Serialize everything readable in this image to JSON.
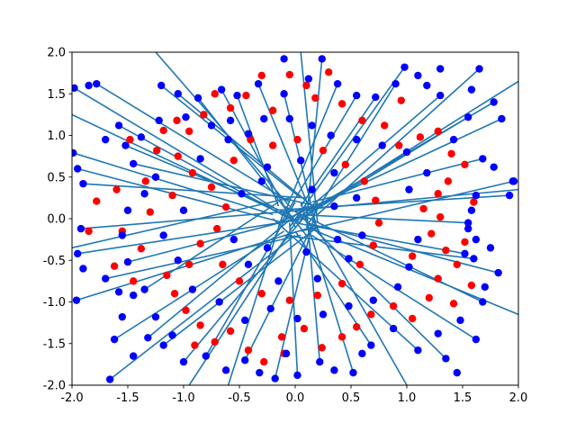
{
  "chart_data": {
    "type": "scatter",
    "title": "",
    "xlabel": "",
    "ylabel": "",
    "xlim": [
      -2.0,
      2.0
    ],
    "ylim": [
      -2.0,
      2.0
    ],
    "grid": false,
    "legend": "none",
    "x_ticks": [
      "-2.0",
      "-1.5",
      "-1.0",
      "-0.5",
      "0.0",
      "0.5",
      "1.0",
      "1.5",
      "2.0"
    ],
    "y_ticks": [
      "-2.0",
      "-1.5",
      "-1.0",
      "-0.5",
      "0.0",
      "0.5",
      "1.0",
      "1.5",
      "2.0"
    ],
    "colors": {
      "line": "#1f77b4",
      "red_points": "#ff0000",
      "blue_points": "#0000ff"
    },
    "red_points": [
      [
        -1.78,
        0.21
      ],
      [
        -1.85,
        -0.15
      ],
      [
        -1.62,
        -0.57
      ],
      [
        -1.45,
        -0.75
      ],
      [
        -1.38,
        -0.36
      ],
      [
        -1.3,
        0.08
      ],
      [
        -1.34,
        0.45
      ],
      [
        -1.24,
        0.82
      ],
      [
        -1.18,
        1.06
      ],
      [
        -1.06,
        1.18
      ],
      [
        -0.95,
        1.05
      ],
      [
        -0.82,
        1.25
      ],
      [
        -0.72,
        1.5
      ],
      [
        -0.58,
        1.33
      ],
      [
        -0.44,
        1.48
      ],
      [
        -0.3,
        1.72
      ],
      [
        -0.2,
        1.3
      ],
      [
        -0.05,
        1.73
      ],
      [
        0.18,
        1.45
      ],
      [
        0.3,
        1.76
      ],
      [
        0.42,
        1.38
      ],
      [
        0.6,
        1.18
      ],
      [
        0.8,
        1.12
      ],
      [
        0.93,
        0.88
      ],
      [
        1.12,
        0.98
      ],
      [
        1.28,
        1.05
      ],
      [
        1.4,
        0.78
      ],
      [
        1.52,
        0.65
      ],
      [
        1.37,
        0.45
      ],
      [
        1.28,
        0.3
      ],
      [
        1.15,
        0.12
      ],
      [
        1.3,
        0.02
      ],
      [
        1.22,
        -0.18
      ],
      [
        1.35,
        -0.38
      ],
      [
        1.45,
        -0.55
      ],
      [
        1.28,
        -0.72
      ],
      [
        1.42,
        -1.02
      ],
      [
        1.2,
        -0.95
      ],
      [
        1.05,
        -1.2
      ],
      [
        0.88,
        -1.05
      ],
      [
        0.68,
        -1.15
      ],
      [
        0.55,
        -1.3
      ],
      [
        0.42,
        -1.42
      ],
      [
        0.24,
        -1.55
      ],
      [
        0.08,
        -1.32
      ],
      [
        -0.12,
        -1.42
      ],
      [
        -0.28,
        -1.72
      ],
      [
        -0.42,
        -1.58
      ],
      [
        -0.58,
        -1.35
      ],
      [
        -0.72,
        -1.48
      ],
      [
        -0.85,
        -1.28
      ],
      [
        -0.98,
        -1.1
      ],
      [
        -1.08,
        -0.9
      ],
      [
        -1.15,
        -0.68
      ],
      [
        -0.95,
        -0.55
      ],
      [
        -0.85,
        -0.3
      ],
      [
        -0.7,
        -0.12
      ],
      [
        -0.62,
        0.14
      ],
      [
        -0.75,
        0.38
      ],
      [
        -0.92,
        0.55
      ],
      [
        -1.05,
        0.75
      ],
      [
        -0.55,
        0.7
      ],
      [
        -0.4,
        0.95
      ],
      [
        -0.2,
        0.88
      ],
      [
        0.02,
        0.95
      ],
      [
        0.25,
        0.82
      ],
      [
        0.45,
        0.65
      ],
      [
        0.62,
        0.45
      ],
      [
        0.72,
        0.22
      ],
      [
        0.75,
        -0.05
      ],
      [
        0.7,
        -0.32
      ],
      [
        0.58,
        -0.55
      ],
      [
        0.42,
        -0.78
      ],
      [
        0.2,
        -0.92
      ],
      [
        -0.05,
        -0.98
      ],
      [
        -0.3,
        -0.9
      ],
      [
        -0.5,
        -0.75
      ],
      [
        -0.65,
        -0.55
      ],
      [
        -1.6,
        0.35
      ],
      [
        -1.55,
        -0.15
      ],
      [
        1.6,
        0.2
      ],
      [
        1.52,
        -0.28
      ],
      [
        0.95,
        1.42
      ],
      [
        -0.9,
        -1.52
      ],
      [
        1.58,
        -0.8
      ],
      [
        -1.48,
        0.95
      ],
      [
        0.1,
        1.6
      ],
      [
        -0.1,
        -1.62
      ],
      [
        1.05,
        -0.45
      ],
      [
        -1.1,
        0.28
      ]
    ],
    "blue_points": [
      [
        -1.99,
        0.79
      ],
      [
        -1.98,
        1.57
      ],
      [
        -1.78,
        1.62
      ],
      [
        -1.95,
        0.6
      ],
      [
        -1.9,
        0.42
      ],
      [
        -1.92,
        -0.12
      ],
      [
        -1.95,
        -0.42
      ],
      [
        -1.9,
        -0.6
      ],
      [
        -1.96,
        -0.98
      ],
      [
        -1.62,
        -1.45
      ],
      [
        -1.66,
        -1.93
      ],
      [
        -1.32,
        -1.43
      ],
      [
        -1.18,
        -1.52
      ],
      [
        -1.55,
        -1.18
      ],
      [
        -1.45,
        -0.92
      ],
      [
        -1.5,
        -0.52
      ],
      [
        -1.5,
        0.1
      ],
      [
        -1.45,
        0.66
      ],
      [
        -1.52,
        0.88
      ],
      [
        -1.58,
        1.12
      ],
      [
        -1.2,
        1.6
      ],
      [
        -1.05,
        1.5
      ],
      [
        -0.87,
        1.45
      ],
      [
        -0.66,
        1.55
      ],
      [
        -0.52,
        1.48
      ],
      [
        -0.33,
        1.62
      ],
      [
        -0.1,
        1.5
      ],
      [
        0.12,
        1.68
      ],
      [
        0.24,
        1.92
      ],
      [
        0.38,
        1.62
      ],
      [
        0.55,
        1.48
      ],
      [
        0.72,
        1.46
      ],
      [
        0.9,
        1.62
      ],
      [
        0.98,
        1.82
      ],
      [
        1.1,
        1.72
      ],
      [
        1.18,
        1.6
      ],
      [
        1.3,
        1.48
      ],
      [
        1.58,
        1.55
      ],
      [
        1.65,
        1.8
      ],
      [
        1.78,
        1.4
      ],
      [
        1.85,
        1.2
      ],
      [
        1.55,
        1.22
      ],
      [
        1.42,
        0.95
      ],
      [
        1.68,
        0.72
      ],
      [
        1.78,
        0.62
      ],
      [
        1.96,
        0.45
      ],
      [
        1.92,
        0.28
      ],
      [
        1.62,
        0.28
      ],
      [
        1.58,
        0.1
      ],
      [
        1.55,
        -0.05
      ],
      [
        1.55,
        -0.12
      ],
      [
        1.62,
        -0.25
      ],
      [
        1.52,
        -0.42
      ],
      [
        1.6,
        -0.48
      ],
      [
        1.82,
        -0.65
      ],
      [
        1.7,
        -0.82
      ],
      [
        1.68,
        -1.0
      ],
      [
        1.48,
        -1.22
      ],
      [
        1.62,
        -1.45
      ],
      [
        1.28,
        -1.38
      ],
      [
        1.35,
        -1.68
      ],
      [
        1.1,
        -1.58
      ],
      [
        0.88,
        -1.32
      ],
      [
        0.68,
        -1.52
      ],
      [
        0.52,
        -1.85
      ],
      [
        0.35,
        -1.82
      ],
      [
        0.22,
        -1.72
      ],
      [
        0.02,
        -1.88
      ],
      [
        -0.08,
        -1.62
      ],
      [
        -0.18,
        -1.92
      ],
      [
        -0.32,
        -1.85
      ],
      [
        -0.45,
        -1.7
      ],
      [
        -0.62,
        -1.82
      ],
      [
        -0.8,
        -1.65
      ],
      [
        -1.0,
        -1.72
      ],
      [
        -1.1,
        -1.4
      ],
      [
        -1.25,
        -1.18
      ],
      [
        -1.35,
        -0.85
      ],
      [
        -1.58,
        -0.88
      ],
      [
        -1.7,
        -0.72
      ],
      [
        -1.35,
        0.3
      ],
      [
        -1.25,
        0.5
      ],
      [
        -1.38,
        0.98
      ],
      [
        -1.22,
        1.18
      ],
      [
        -0.98,
        1.22
      ],
      [
        -0.75,
        1.12
      ],
      [
        -0.58,
        1.18
      ],
      [
        -0.42,
        1.02
      ],
      [
        -0.28,
        1.2
      ],
      [
        -0.05,
        1.2
      ],
      [
        0.15,
        1.12
      ],
      [
        0.32,
        1.0
      ],
      [
        0.55,
        0.95
      ],
      [
        0.78,
        0.88
      ],
      [
        1.0,
        0.8
      ],
      [
        1.18,
        0.55
      ],
      [
        1.02,
        0.35
      ],
      [
        1.1,
        -0.25
      ],
      [
        1.02,
        -0.58
      ],
      [
        0.92,
        -0.82
      ],
      [
        0.7,
        -0.98
      ],
      [
        0.48,
        -1.05
      ],
      [
        0.25,
        -1.15
      ],
      [
        0.02,
        -1.2
      ],
      [
        -0.22,
        -1.08
      ],
      [
        -0.45,
        -1.22
      ],
      [
        -0.68,
        -1.0
      ],
      [
        -0.92,
        -0.85
      ],
      [
        -1.05,
        -0.5
      ],
      [
        -1.18,
        -0.2
      ],
      [
        -1.0,
        0.1
      ],
      [
        -0.85,
        0.72
      ],
      [
        -0.6,
        0.95
      ],
      [
        -0.25,
        0.62
      ],
      [
        0.05,
        0.7
      ],
      [
        0.35,
        0.55
      ],
      [
        0.55,
        0.25
      ],
      [
        0.6,
        -0.2
      ],
      [
        0.48,
        -0.48
      ],
      [
        0.2,
        -0.72
      ],
      [
        -0.15,
        -0.75
      ],
      [
        -0.42,
        -0.55
      ],
      [
        -0.55,
        -0.25
      ],
      [
        -0.48,
        0.3
      ],
      [
        -0.3,
        0.45
      ],
      [
        0.15,
        0.35
      ],
      [
        0.35,
        0.15
      ],
      [
        0.38,
        -0.25
      ],
      [
        0.1,
        -0.4
      ],
      [
        -0.25,
        -0.35
      ],
      [
        -1.7,
        0.95
      ],
      [
        1.95,
        0.45
      ],
      [
        -1.55,
        -0.2
      ],
      [
        1.45,
        -1.85
      ],
      [
        -0.1,
        1.92
      ],
      [
        0.6,
        -1.62
      ],
      [
        -1.85,
        1.6
      ],
      [
        1.3,
        1.8
      ],
      [
        1.75,
        -0.35
      ],
      [
        -1.45,
        -1.65
      ]
    ],
    "line_segments": [
      [
        [
          -1.99,
          0.79
        ],
        [
          -0.2,
          0.05
        ]
      ],
      [
        [
          -1.98,
          1.57
        ],
        [
          -0.15,
          0.1
        ]
      ],
      [
        [
          -1.78,
          1.62
        ],
        [
          -0.05,
          0.2
        ]
      ],
      [
        [
          -1.95,
          0.6
        ],
        [
          -0.1,
          -0.05
        ]
      ],
      [
        [
          -1.92,
          -0.12
        ],
        [
          0.05,
          0.1
        ]
      ],
      [
        [
          -1.95,
          -0.42
        ],
        [
          0.1,
          0.0
        ]
      ],
      [
        [
          -1.96,
          -0.98
        ],
        [
          0.15,
          -0.1
        ]
      ],
      [
        [
          -1.66,
          -1.93
        ],
        [
          0.0,
          -0.2
        ]
      ],
      [
        [
          -1.62,
          -1.45
        ],
        [
          -0.1,
          -0.15
        ]
      ],
      [
        [
          -1.32,
          -1.43
        ],
        [
          0.1,
          0.15
        ]
      ],
      [
        [
          -1.2,
          1.6
        ],
        [
          0.05,
          0.25
        ]
      ],
      [
        [
          -1.05,
          1.5
        ],
        [
          0.2,
          0.1
        ]
      ],
      [
        [
          -0.66,
          1.55
        ],
        [
          0.0,
          -0.1
        ]
      ],
      [
        [
          -0.33,
          1.62
        ],
        [
          0.15,
          0.05
        ]
      ],
      [
        [
          -0.1,
          1.5
        ],
        [
          0.2,
          -0.15
        ]
      ],
      [
        [
          0.24,
          1.92
        ],
        [
          0.1,
          -0.05
        ]
      ],
      [
        [
          0.38,
          1.62
        ],
        [
          -0.1,
          0.05
        ]
      ],
      [
        [
          0.72,
          1.46
        ],
        [
          0.05,
          0.15
        ]
      ],
      [
        [
          0.98,
          1.82
        ],
        [
          -0.05,
          -0.1
        ]
      ],
      [
        [
          1.3,
          1.48
        ],
        [
          0.1,
          0.1
        ]
      ],
      [
        [
          1.65,
          1.8
        ],
        [
          0.2,
          0.05
        ]
      ],
      [
        [
          1.78,
          1.4
        ],
        [
          0.0,
          0.0
        ]
      ],
      [
        [
          1.85,
          1.2
        ],
        [
          -0.15,
          -0.05
        ]
      ],
      [
        [
          1.96,
          0.45
        ],
        [
          0.05,
          -0.15
        ]
      ],
      [
        [
          1.92,
          0.28
        ],
        [
          -0.2,
          0.1
        ]
      ],
      [
        [
          1.55,
          -0.05
        ],
        [
          0.0,
          0.05
        ]
      ],
      [
        [
          1.82,
          -0.65
        ],
        [
          0.1,
          -0.05
        ]
      ],
      [
        [
          1.68,
          -1.0
        ],
        [
          -0.1,
          0.15
        ]
      ],
      [
        [
          1.62,
          -1.45
        ],
        [
          0.15,
          -0.2
        ]
      ],
      [
        [
          1.35,
          -1.68
        ],
        [
          0.0,
          0.1
        ]
      ],
      [
        [
          1.1,
          -1.58
        ],
        [
          -0.2,
          0.0
        ]
      ],
      [
        [
          0.52,
          -1.85
        ],
        [
          0.05,
          0.2
        ]
      ],
      [
        [
          0.22,
          -1.72
        ],
        [
          0.1,
          0.15
        ]
      ],
      [
        [
          0.02,
          -1.88
        ],
        [
          -0.05,
          -0.05
        ]
      ],
      [
        [
          -0.18,
          -1.92
        ],
        [
          0.2,
          0.2
        ]
      ],
      [
        [
          -0.45,
          -1.7
        ],
        [
          0.15,
          -0.1
        ]
      ],
      [
        [
          -0.8,
          -1.65
        ],
        [
          0.0,
          0.2
        ]
      ],
      [
        [
          -1.0,
          -1.72
        ],
        [
          0.1,
          0.05
        ]
      ],
      [
        [
          -1.35,
          -0.85
        ],
        [
          -0.15,
          0.2
        ]
      ],
      [
        [
          -1.7,
          -0.72
        ],
        [
          0.05,
          -0.2
        ]
      ],
      [
        [
          -1.45,
          0.66
        ],
        [
          0.2,
          0.15
        ]
      ],
      [
        [
          -1.52,
          0.88
        ],
        [
          -0.05,
          0.05
        ]
      ],
      [
        [
          -0.87,
          1.45
        ],
        [
          0.1,
          -0.2
        ]
      ],
      [
        [
          0.55,
          1.48
        ],
        [
          -0.15,
          -0.1
        ]
      ],
      [
        [
          1.55,
          1.22
        ],
        [
          0.05,
          0.0
        ]
      ],
      [
        [
          1.68,
          0.72
        ],
        [
          0.15,
          0.2
        ]
      ],
      [
        [
          1.6,
          -0.48
        ],
        [
          -0.1,
          -0.2
        ]
      ],
      [
        [
          0.68,
          -1.52
        ],
        [
          0.0,
          -0.15
        ]
      ],
      [
        [
          -1.18,
          -1.52
        ],
        [
          0.2,
          -0.1
        ]
      ],
      [
        [
          -1.9,
          0.42
        ],
        [
          0.1,
          0.25
        ]
      ],
      [
        [
          -2.0,
          -0.35
        ],
        [
          -0.05,
          0.25
        ]
      ],
      [
        [
          2.0,
          1.65
        ],
        [
          0.1,
          0.05
        ]
      ],
      [
        [
          2.0,
          0.35
        ],
        [
          0.0,
          0.1
        ]
      ],
      [
        [
          -0.95,
          -2.0
        ],
        [
          0.05,
          0.05
        ]
      ],
      [
        [
          -0.6,
          -2.0
        ],
        [
          -0.1,
          0.1
        ]
      ],
      [
        [
          1.0,
          -2.0
        ],
        [
          0.15,
          0.0
        ]
      ],
      [
        [
          -1.25,
          2.0
        ],
        [
          -0.05,
          0.15
        ]
      ],
      [
        [
          0.05,
          2.0
        ],
        [
          0.2,
          -0.05
        ]
      ],
      [
        [
          2.0,
          -1.15
        ],
        [
          0.1,
          -0.1
        ]
      ],
      [
        [
          -2.0,
          1.25
        ],
        [
          0.05,
          -0.05
        ]
      ],
      [
        [
          -1.58,
          1.12
        ],
        [
          -0.05,
          0.0
        ]
      ],
      [
        [
          -1.5,
          -0.52
        ],
        [
          0.15,
          0.05
        ]
      ],
      [
        [
          1.52,
          -0.42
        ],
        [
          0.0,
          -0.05
        ]
      ],
      [
        [
          0.9,
          1.62
        ],
        [
          0.1,
          -0.1
        ]
      ],
      [
        [
          -0.52,
          1.48
        ],
        [
          -0.15,
          0.15
        ]
      ]
    ]
  }
}
